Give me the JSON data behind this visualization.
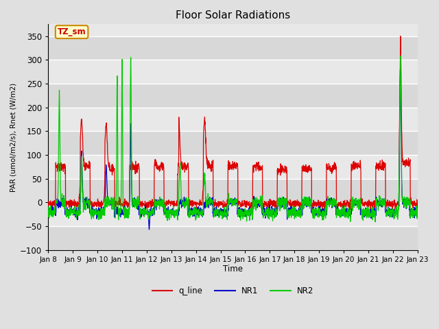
{
  "title": "Floor Solar Radiations",
  "xlabel": "Time",
  "ylabel": "PAR (umol/m2/s), Rnet (W/m2)",
  "ylim": [
    -100,
    375
  ],
  "yticks": [
    -100,
    -50,
    0,
    50,
    100,
    150,
    200,
    250,
    300,
    350
  ],
  "xlim": [
    0,
    15
  ],
  "xtick_positions": [
    0,
    1,
    2,
    3,
    4,
    5,
    6,
    7,
    8,
    9,
    10,
    11,
    12,
    13,
    14,
    15
  ],
  "xtick_labels": [
    "Jan 8",
    "Jan 9",
    "Jan 10",
    "Jan 11",
    "Jan 12",
    "Jan 13",
    "Jan 14",
    "Jan 15",
    "Jan 16",
    "Jan 17",
    "Jan 18",
    "Jan 19",
    "Jan 20",
    "Jan 21",
    "Jan 22",
    "Jan 23"
  ],
  "colors": {
    "q_line": "#dd0000",
    "NR1": "#0000cc",
    "NR2": "#00cc00",
    "background_light": "#e8e8e8",
    "background_dark": "#d0d0d0",
    "grid_color": "#ffffff",
    "annotation_bg": "#ffffcc",
    "annotation_border": "#cc8800",
    "annotation_text": "#cc0000",
    "fig_bg": "#e0e0e0"
  },
  "annotation_text": "TZ_sm",
  "legend_labels": [
    "q_line",
    "NR1",
    "NR2"
  ],
  "n_points": 2000,
  "seed": 12345
}
